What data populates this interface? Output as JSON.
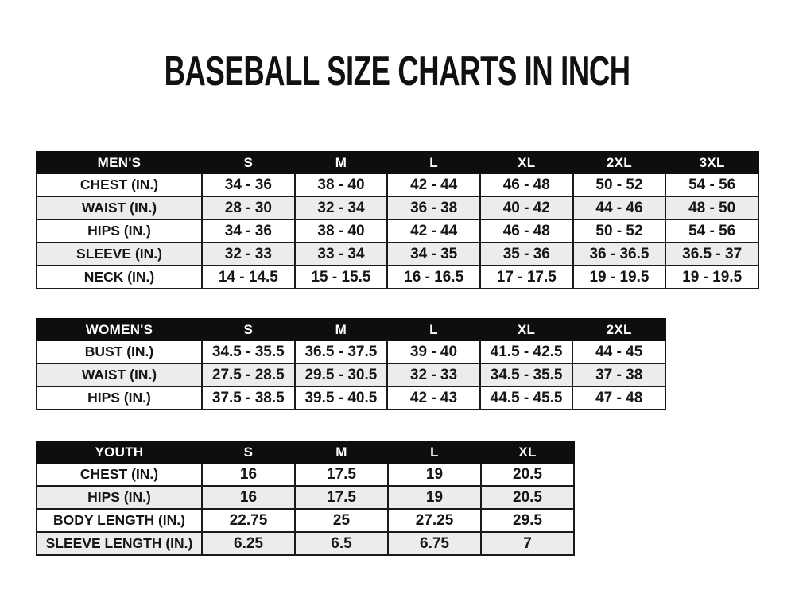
{
  "title": "BASEBALL SIZE CHARTS IN INCH",
  "colors": {
    "header_bg": "#0e0e0e",
    "header_text": "#ffffff",
    "row_alt_bg": "#ececec",
    "border": "#1a1a1a",
    "text": "#161616"
  },
  "tables": [
    {
      "id": "mens",
      "header": [
        "MEN'S",
        "S",
        "M",
        "L",
        "XL",
        "2XL",
        "3XL"
      ],
      "rows": [
        {
          "label": "CHEST (IN.)",
          "values": [
            "34 - 36",
            "38 - 40",
            "42 - 44",
            "46 - 48",
            "50 - 52",
            "54 - 56"
          ]
        },
        {
          "label": "WAIST (IN.)",
          "values": [
            "28 - 30",
            "32 - 34",
            "36 - 38",
            "40 - 42",
            "44 - 46",
            "48 - 50"
          ]
        },
        {
          "label": "HIPS (IN.)",
          "values": [
            "34 - 36",
            "38 - 40",
            "42 - 44",
            "46 - 48",
            "50 - 52",
            "54 - 56"
          ]
        },
        {
          "label": "SLEEVE (IN.)",
          "values": [
            "32 - 33",
            "33 - 34",
            "34 - 35",
            "35 - 36",
            "36 - 36.5",
            "36.5 - 37"
          ]
        },
        {
          "label": "NECK (IN.)",
          "values": [
            "14 - 14.5",
            "15 - 15.5",
            "16 - 16.5",
            "17 - 17.5",
            "19 - 19.5",
            "19 - 19.5"
          ]
        }
      ]
    },
    {
      "id": "womens",
      "header": [
        "WOMEN'S",
        "S",
        "M",
        "L",
        "XL",
        "2XL"
      ],
      "rows": [
        {
          "label": "BUST (IN.)",
          "values": [
            "34.5 - 35.5",
            "36.5 - 37.5",
            "39 - 40",
            "41.5 - 42.5",
            "44 - 45"
          ]
        },
        {
          "label": "WAIST (IN.)",
          "values": [
            "27.5 - 28.5",
            "29.5 - 30.5",
            "32 - 33",
            "34.5 - 35.5",
            "37 - 38"
          ]
        },
        {
          "label": "HIPS (IN.)",
          "values": [
            "37.5 - 38.5",
            "39.5 - 40.5",
            "42 - 43",
            "44.5 - 45.5",
            "47 - 48"
          ]
        }
      ]
    },
    {
      "id": "youth",
      "header": [
        "YOUTH",
        "S",
        "M",
        "L",
        "XL"
      ],
      "rows": [
        {
          "label": "CHEST (IN.)",
          "values": [
            "16",
            "17.5",
            "19",
            "20.5"
          ]
        },
        {
          "label": "HIPS (IN.)",
          "values": [
            "16",
            "17.5",
            "19",
            "20.5"
          ]
        },
        {
          "label": "BODY LENGTH (IN.)",
          "values": [
            "22.75",
            "25",
            "27.25",
            "29.5"
          ]
        },
        {
          "label": "SLEEVE LENGTH (IN.)",
          "values": [
            "6.25",
            "6.5",
            "6.75",
            "7"
          ]
        }
      ]
    }
  ]
}
